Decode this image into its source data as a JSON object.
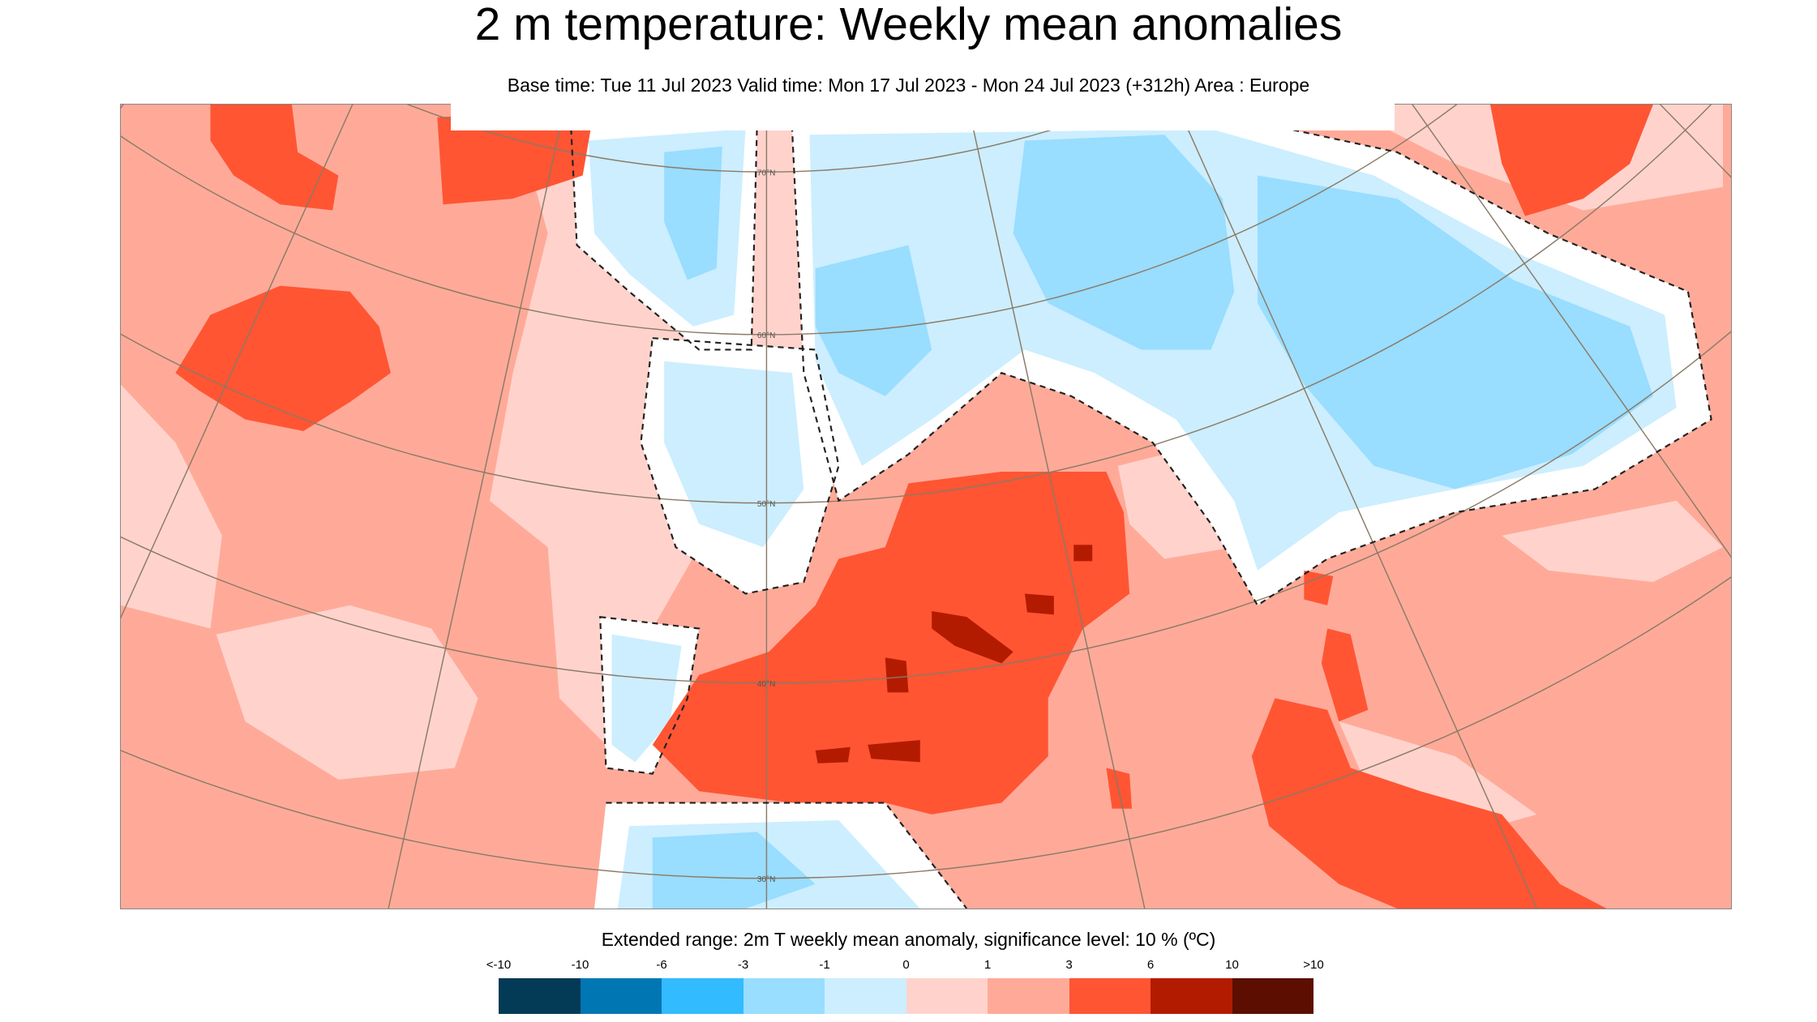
{
  "title": "2 m temperature: Weekly mean anomalies",
  "subtitle": "Base time: Tue 11 Jul 2023 Valid time: Mon 17 Jul 2023 - Mon 24 Jul 2023 (+312h) Area : Europe",
  "map": {
    "area": "Europe",
    "graticule_labels": [
      "70°N",
      "60°N",
      "50°N",
      "40°N",
      "30°N"
    ]
  },
  "legend": {
    "title": "Extended range: 2m T weekly mean anomaly, significance level: 10 % (ºC)",
    "labels": [
      "<-10",
      "-10",
      "-6",
      "-3",
      "-1",
      "0",
      "1",
      "3",
      "6",
      "10",
      ">10"
    ],
    "colors": [
      "#033a56",
      "#0077b3",
      "#33bbff",
      "#99ddff",
      "#cceeff",
      "#ffd3cc",
      "#ffaa99",
      "#ff5533",
      "#b31b00",
      "#5c0e00"
    ],
    "not_significant_color": "#ffffff"
  }
}
